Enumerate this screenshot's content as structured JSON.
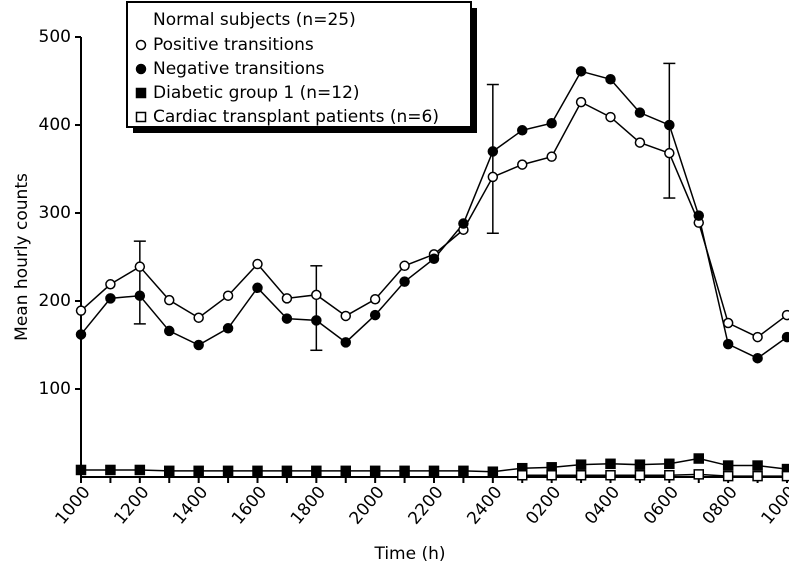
{
  "chart_data": {
    "type": "line",
    "x_label": "Time (h)",
    "y_label": "Mean hourly counts",
    "legend_title": "Normal subjects (n=25)",
    "categories": [
      "1000",
      null,
      "1200",
      null,
      "1400",
      null,
      "1600",
      null,
      "1800",
      null,
      "2000",
      null,
      "2200",
      null,
      "2400",
      null,
      "0200",
      null,
      "0400",
      null,
      "0600",
      null,
      "0800",
      null,
      "1000"
    ],
    "series": [
      {
        "name": "Positive transitions",
        "color": "#000000",
        "marker": "circle-open",
        "values": [
          189,
          219,
          239,
          201,
          181,
          206,
          242,
          203,
          207,
          183,
          202,
          240,
          253,
          281,
          341,
          355,
          364,
          426,
          409,
          380,
          368,
          289,
          175,
          159,
          184
        ]
      },
      {
        "name": "Negative transitions",
        "color": "#000000",
        "marker": "circle-filled",
        "values": [
          162,
          203,
          206,
          166,
          150,
          169,
          215,
          180,
          178,
          153,
          184,
          222,
          248,
          288,
          370,
          394,
          402,
          461,
          452,
          414,
          400,
          297,
          151,
          135,
          159
        ]
      },
      {
        "name": "Diabetic group 1 (n=12)",
        "color": "#000000",
        "marker": "square-filled",
        "values": [
          8,
          8,
          8,
          7,
          7,
          7,
          7,
          7,
          7,
          7,
          7,
          7,
          7,
          7,
          6,
          10,
          11,
          14,
          15,
          14,
          15,
          21,
          13,
          13,
          9
        ]
      },
      {
        "name": "Cardiac transplant patients (n=6)",
        "color": "#000000",
        "marker": "square-open",
        "values": [
          null,
          null,
          null,
          null,
          null,
          null,
          null,
          null,
          null,
          null,
          null,
          null,
          null,
          null,
          null,
          2,
          2,
          2,
          2,
          2,
          2,
          3,
          1,
          1,
          1
        ]
      }
    ],
    "error_bars": [
      {
        "category": "1200",
        "low": 174,
        "high": 268
      },
      {
        "category": "1800",
        "low": 144,
        "high": 240
      },
      {
        "category": "2400",
        "low": 277,
        "high": 446
      },
      {
        "category": "0600",
        "low": 317,
        "high": 470
      }
    ],
    "ylim": [
      0,
      500
    ],
    "yticks": [
      100,
      200,
      300,
      400,
      500
    ],
    "grid": false,
    "legend_position": "top-left"
  }
}
